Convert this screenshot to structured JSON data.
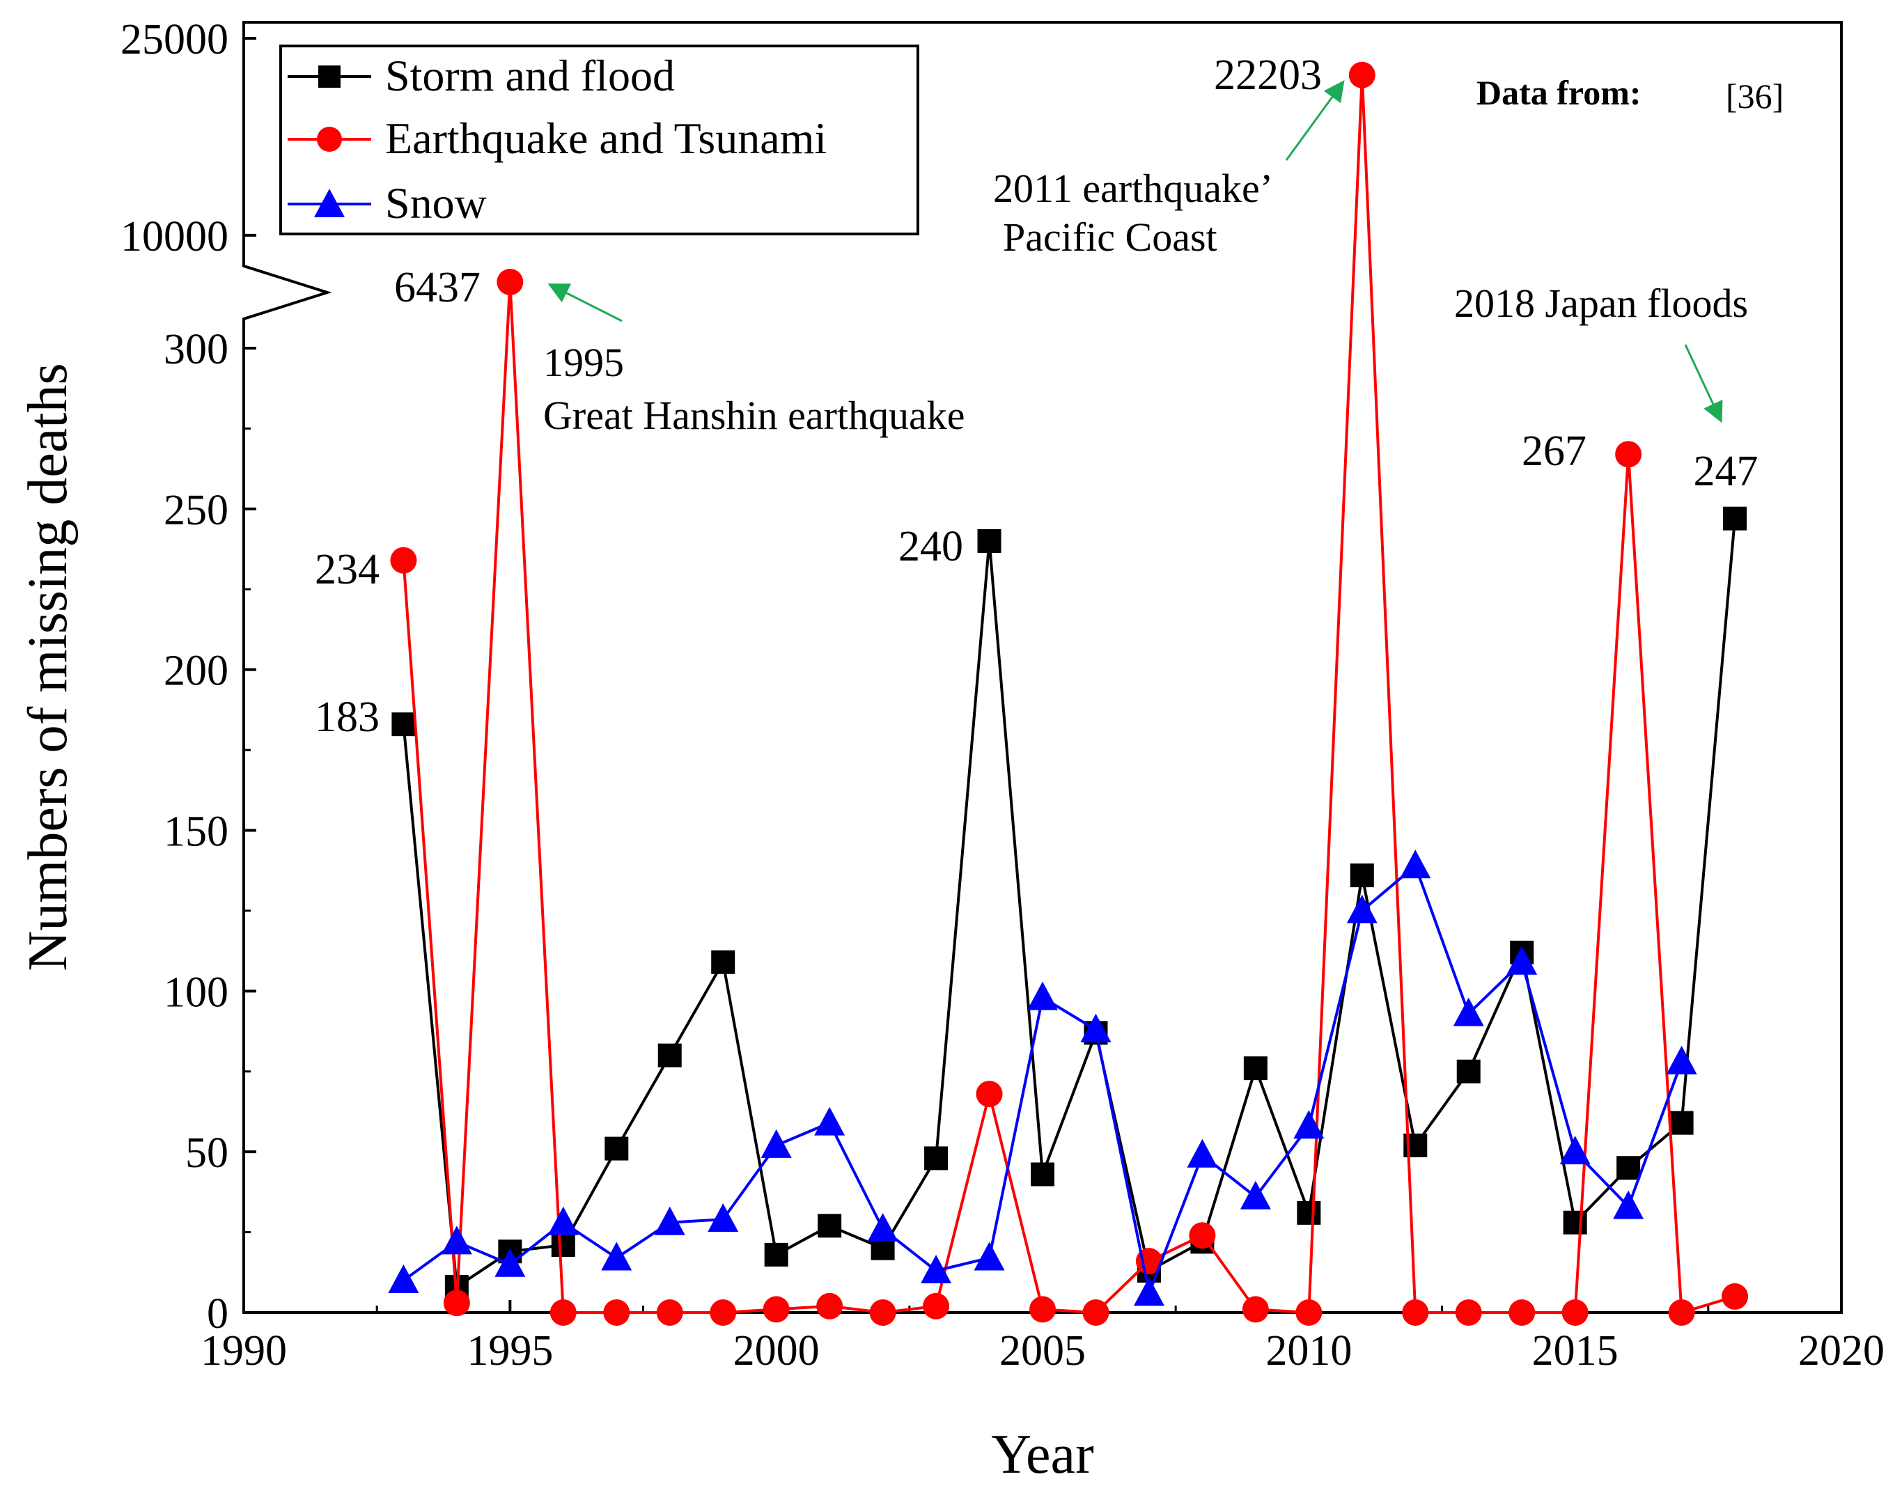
{
  "chart_data": {
    "type": "line",
    "xlabel": "Year",
    "ylabel": "Numbers of missing deaths",
    "xlim": [
      1990,
      2020
    ],
    "x_ticks": [
      "1990",
      "1995",
      "2000",
      "2005",
      "2010",
      "2015",
      "2020"
    ],
    "y_ticks_lower": [
      "0",
      "50",
      "100",
      "150",
      "200",
      "250",
      "300"
    ],
    "y_ticks_upper": [
      "10000",
      "25000"
    ],
    "ylim_lower": [
      0,
      300
    ],
    "ylim_upper": [
      6437,
      25000
    ],
    "axis_break": "between 300 and 10000",
    "legend_position": "top-left",
    "series": [
      {
        "name": "Storm and flood",
        "color": "#000000",
        "marker": "square",
        "x": [
          1993,
          1994,
          1995,
          1996,
          1997,
          1998,
          1999,
          2000,
          2001,
          2002,
          2003,
          2004,
          2005,
          2006,
          2007,
          2008,
          2009,
          2010,
          2011,
          2012,
          2013,
          2014,
          2015,
          2016,
          2017,
          2018
        ],
        "values": [
          183,
          8,
          19,
          21,
          51,
          80,
          109,
          18,
          27,
          20,
          48,
          240,
          43,
          87,
          13,
          22,
          76,
          31,
          136,
          52,
          75,
          112,
          28,
          45,
          59,
          247
        ]
      },
      {
        "name": "Earthquake and Tsunami",
        "color": "#ff0000",
        "marker": "circle",
        "x": [
          1993,
          1994,
          1995,
          1996,
          1997,
          1998,
          1999,
          2000,
          2001,
          2002,
          2003,
          2004,
          2005,
          2006,
          2007,
          2008,
          2009,
          2010,
          2011,
          2012,
          2013,
          2014,
          2015,
          2016,
          2017,
          2018
        ],
        "values": [
          234,
          3,
          6437,
          0,
          0,
          0,
          0,
          1,
          2,
          0,
          2,
          68,
          1,
          0,
          16,
          24,
          1,
          0,
          22203,
          0,
          0,
          0,
          0,
          267,
          0,
          5
        ]
      },
      {
        "name": "Snow",
        "color": "#0000ff",
        "marker": "triangle",
        "x": [
          1993,
          1994,
          1995,
          1996,
          1997,
          1998,
          1999,
          2000,
          2001,
          2002,
          2003,
          2004,
          2005,
          2006,
          2007,
          2008,
          2009,
          2010,
          2011,
          2012,
          2013,
          2014,
          2015,
          2016,
          2017,
          2018
        ],
        "values": [
          10,
          22,
          15,
          28,
          17,
          28,
          29,
          52,
          59,
          26,
          13,
          17,
          98,
          88,
          6,
          49,
          36,
          58,
          125,
          139,
          93,
          109,
          50,
          33,
          78,
          null
        ]
      }
    ],
    "data_labels": [
      {
        "series": "Earthquake and Tsunami",
        "x": 1993,
        "text": "234"
      },
      {
        "series": "Storm and flood",
        "x": 1993,
        "text": "183"
      },
      {
        "series": "Earthquake and Tsunami",
        "x": 1995,
        "text": "6437"
      },
      {
        "series": "Storm and flood",
        "x": 2004,
        "text": "240"
      },
      {
        "series": "Earthquake and Tsunami",
        "x": 2011,
        "text": "22203"
      },
      {
        "series": "Earthquake and Tsunami",
        "x": 2016,
        "text": "267"
      },
      {
        "series": "Storm and flood",
        "x": 2018,
        "text": "247"
      }
    ],
    "annotations": {
      "kobe_line1": "1995",
      "kobe_line2": "Great Hanshin earthquake",
      "tohoku_line1": "2011 earthquake’",
      "tohoku_line2": "Pacific Coast",
      "floods2018": "2018 Japan floods"
    },
    "annotation_arrow_color": "#1faa55",
    "source_label": "Data from:",
    "source_ref": "[36]"
  }
}
